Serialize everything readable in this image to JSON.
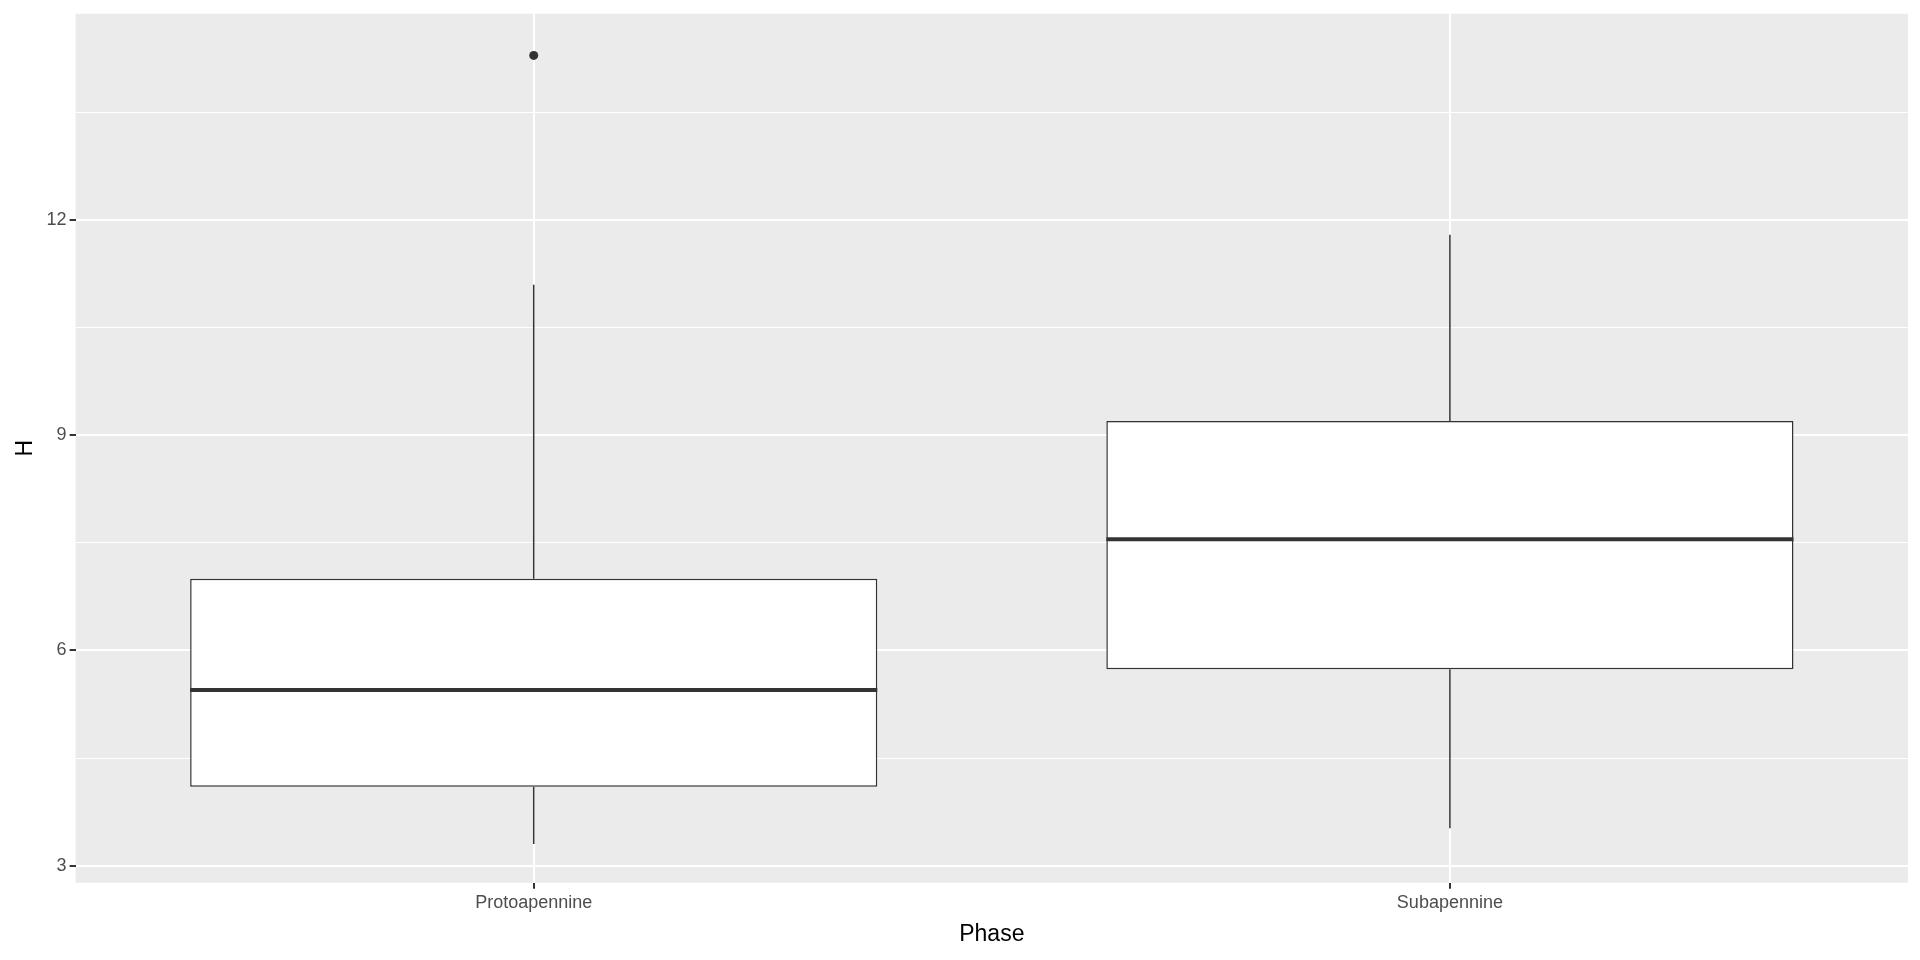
{
  "chart_data": {
    "type": "box",
    "xlabel": "Phase",
    "ylabel": "H",
    "categories": [
      "Protoapennine",
      "Subapennine"
    ],
    "boxes": [
      {
        "low": 3.3,
        "q1": 4.1,
        "median": 5.45,
        "q3": 7.0,
        "high": 11.1,
        "outliers": [
          14.3
        ]
      },
      {
        "low": 3.52,
        "q1": 5.74,
        "median": 7.55,
        "q3": 9.2,
        "high": 11.8
      }
    ],
    "ylim": [
      2.76,
      14.88
    ],
    "yticks": [
      3,
      {
        "value": 4.5,
        "label": null
      },
      6,
      {
        "value": 7.5,
        "label": null
      },
      9,
      {
        "value": 10.5,
        "label": null
      },
      12,
      {
        "value": 13.5,
        "label": null
      }
    ],
    "grid": true
  }
}
